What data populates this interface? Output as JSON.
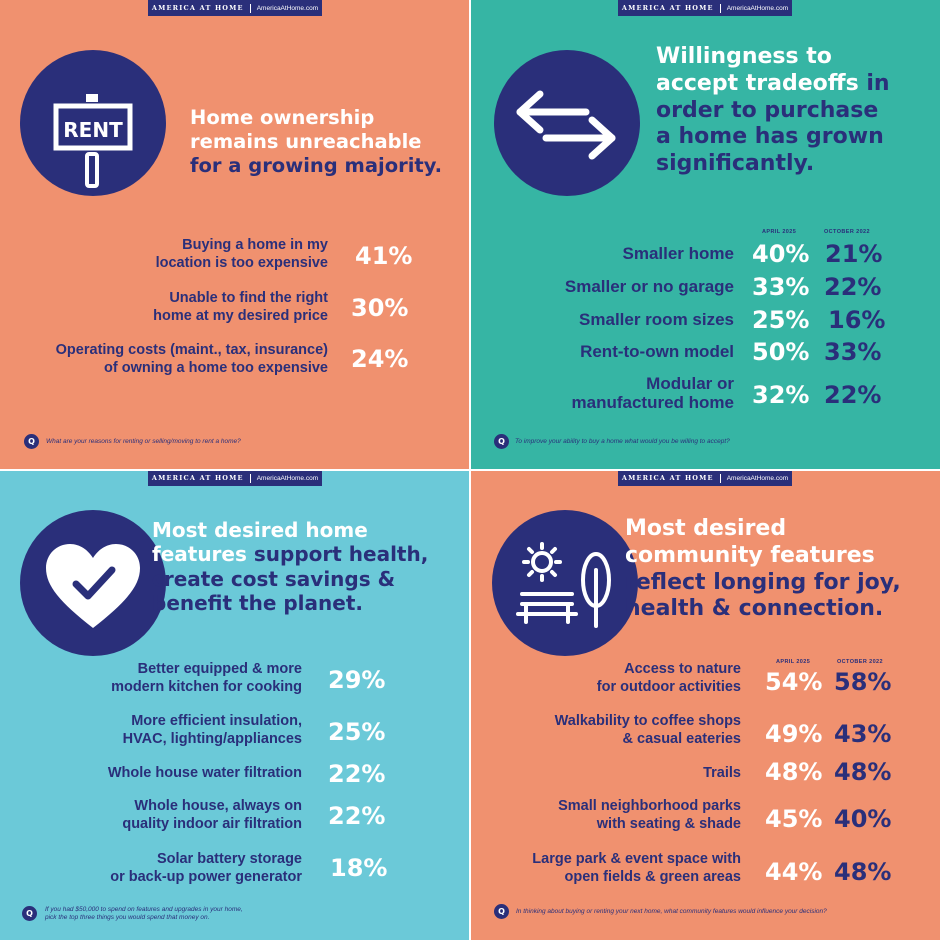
{
  "panels": {
    "rent": {
      "brand": "AMERICA AT HOME",
      "url": "AmericaAtHome.com",
      "sign_text": "RENT",
      "headline": {
        "line1": "Home ownership",
        "line2": "remains unreachable",
        "line3": "for a growing majority."
      },
      "rows": [
        {
          "l1": "Buying a home in my",
          "l2": "location is too expensive",
          "pct": "41%"
        },
        {
          "l1": "Unable to find the right",
          "l2": "home at my desired price",
          "pct": "30%"
        },
        {
          "l1": "Operating costs (maint., tax, insurance)",
          "l2": "of owning a home too expensive",
          "pct": "24%"
        }
      ],
      "q_badge": "Q",
      "question": "What are your reasons for renting or selling/moving to rent a home?"
    },
    "tradeoffs": {
      "brand": "AMERICA AT HOME",
      "url": "AmericaAtHome.com",
      "headline": {
        "line1": "Willingness to",
        "line2a": "accept tradeoffs",
        "line2b": "in",
        "line3": "order to purchase",
        "line4": "a home has grown",
        "line5": "significantly."
      },
      "col1": "APRIL 2025",
      "col2": "OCTOBER 2022",
      "rows": [
        {
          "l1": "Smaller home",
          "l2": "",
          "a": "40%",
          "b": "21%"
        },
        {
          "l1": "Smaller or no garage",
          "l2": "",
          "a": "33%",
          "b": "22%"
        },
        {
          "l1": "Smaller room sizes",
          "l2": "",
          "a": "25%",
          "b": "16%"
        },
        {
          "l1": "Rent-to-own model",
          "l2": "",
          "a": "50%",
          "b": "33%"
        },
        {
          "l1": "Modular or",
          "l2": "manufactured home",
          "a": "32%",
          "b": "22%"
        }
      ],
      "q_badge": "Q",
      "question": "To improve your ability to buy a home what would you be willing to accept?"
    },
    "features": {
      "brand": "AMERICA AT HOME",
      "url": "AmericaAtHome.com",
      "headline": {
        "line1": "Most desired home",
        "line2a": "features",
        "line2b": "support health,",
        "line3": "create cost savings &",
        "line4": "benefit the planet."
      },
      "rows": [
        {
          "l1": "Better equipped & more",
          "l2": "modern kitchen for cooking",
          "pct": "29%"
        },
        {
          "l1": "More efficient insulation,",
          "l2": "HVAC, lighting/appliances",
          "pct": "25%"
        },
        {
          "l1": "Whole house water filtration",
          "l2": "",
          "pct": "22%"
        },
        {
          "l1": "Whole house, always on",
          "l2": "quality indoor air filtration",
          "pct": "22%"
        },
        {
          "l1": "Solar battery storage",
          "l2": "or back-up power generator",
          "pct": "18%"
        }
      ],
      "q_badge": "Q",
      "question_l1": "If you had $50,000 to spend on features and upgrades in your home,",
      "question_l2": "pick the top three things you would spend that money on."
    },
    "community": {
      "brand": "AMERICA AT HOME",
      "url": "AmericaAtHome.com",
      "headline": {
        "line1": "Most desired",
        "line2": "community features",
        "line3": "reflect longing for joy,",
        "line4": "health & connection."
      },
      "col1": "APRIL 2025",
      "col2": "OCTOBER 2022",
      "rows": [
        {
          "l1": "Access to nature",
          "l2": "for outdoor activities",
          "a": "54%",
          "b": "58%"
        },
        {
          "l1": "Walkability to coffee shops",
          "l2": "& casual eateries",
          "a": "49%",
          "b": "43%"
        },
        {
          "l1": "Trails",
          "l2": "",
          "a": "48%",
          "b": "48%"
        },
        {
          "l1": "Small neighborhood parks",
          "l2": "with seating & shade",
          "a": "45%",
          "b": "40%"
        },
        {
          "l1": "Large park & event space with",
          "l2": "open fields & green areas",
          "a": "44%",
          "b": "48%"
        }
      ],
      "q_badge": "Q",
      "question": "In thinking about buying or renting your next home, what community features would influence your decision?"
    }
  },
  "colors": {
    "coral": "#f0916f",
    "teal": "#36b5a4",
    "sky": "#6bc9d8",
    "navy": "#2a2f7a",
    "white": "#ffffff"
  },
  "icons": [
    "rent-sign-icon",
    "swap-arrows-icon",
    "heart-check-icon",
    "park-bench-sun-tree-icon"
  ]
}
